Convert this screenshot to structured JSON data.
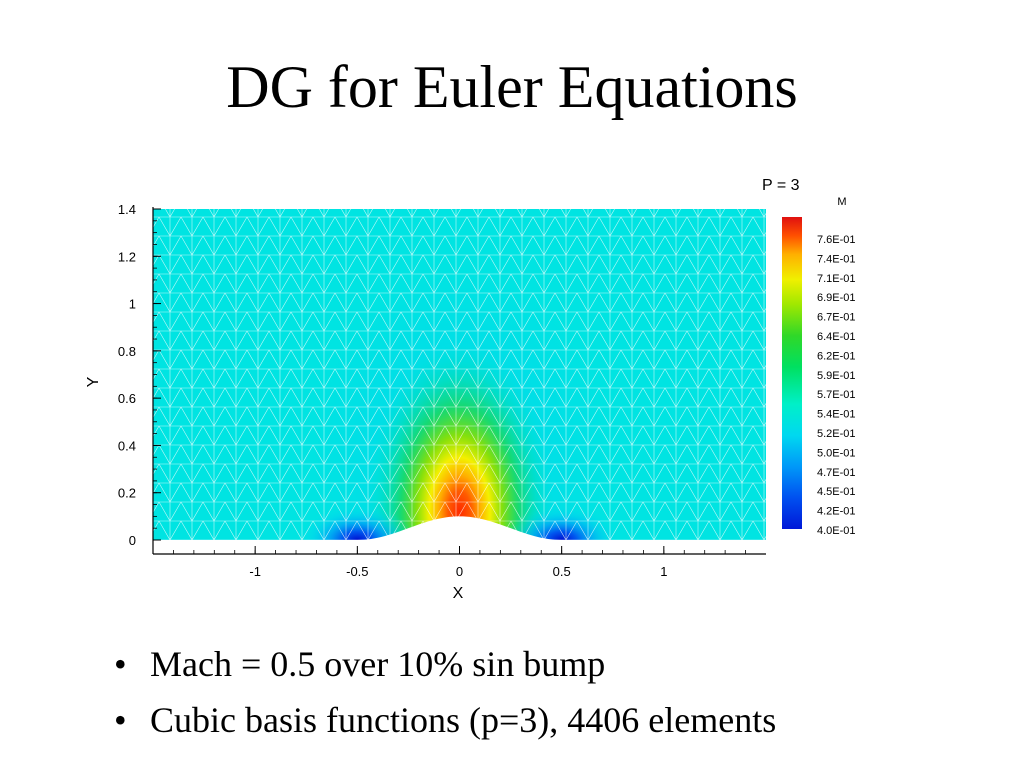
{
  "slide": {
    "title": "DG for Euler Equations",
    "bullets": [
      "Mach = 0.5 over 10% sin bump",
      "Cubic basis functions (p=3), 4406 elements"
    ]
  },
  "chart_data": {
    "type": "heatmap",
    "title": "P = 3",
    "xlabel": "X",
    "ylabel": "Y",
    "xlim": [
      -1.5,
      1.5
    ],
    "ylim": [
      0,
      1.4
    ],
    "x_ticks": [
      "-1",
      "-0.5",
      "0",
      "0.5",
      "1"
    ],
    "x_tick_values": [
      -1,
      -0.5,
      0,
      0.5,
      1
    ],
    "y_ticks": [
      "0",
      "0.2",
      "0.4",
      "0.6",
      "0.8",
      "1",
      "1.2",
      "1.4"
    ],
    "y_tick_values": [
      0,
      0.2,
      0.4,
      0.6,
      0.8,
      1,
      1.2,
      1.4
    ],
    "colorbar": {
      "label": "M",
      "levels": [
        "7.6E-01",
        "7.4E-01",
        "7.1E-01",
        "6.9E-01",
        "6.7E-01",
        "6.4E-01",
        "6.2E-01",
        "5.9E-01",
        "5.7E-01",
        "5.4E-01",
        "5.2E-01",
        "5.0E-01",
        "4.7E-01",
        "4.5E-01",
        "4.2E-01",
        "4.0E-01"
      ],
      "min": 0.4,
      "max": 0.78
    },
    "freestream_value": 0.5,
    "bump": {
      "center_x": 0,
      "half_width": 0.5,
      "height": 0.1,
      "shape": "sin"
    },
    "field_features": [
      {
        "feature": "maximum",
        "x": 0,
        "y": 0.12,
        "value": 0.77
      },
      {
        "feature": "minimum",
        "x": -0.5,
        "y": 0.0,
        "value": 0.4
      },
      {
        "feature": "minimum",
        "x": 0.5,
        "y": 0.0,
        "value": 0.4
      }
    ],
    "mesh": "triangular, white edges",
    "grid": false,
    "legend_position": "right"
  }
}
